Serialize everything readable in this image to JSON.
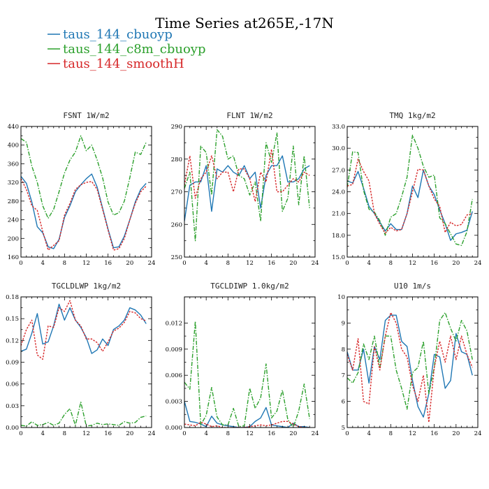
{
  "figure": {
    "title": "Time Series at265E,-17N",
    "legend": [
      {
        "label": "taus_144_cbuoyp",
        "color": "#1f77b4",
        "dash": "solid"
      },
      {
        "label": "taus_144_c8m_cbuoyp",
        "color": "#2ca02c",
        "dash": "dashdot"
      },
      {
        "label": "taus_144_smoothH",
        "color": "#d62728",
        "dash": "dotted"
      }
    ]
  },
  "chart_data": [
    {
      "type": "line",
      "title": "FSNT   1W/m2",
      "xlim": [
        0,
        24
      ],
      "ylim": [
        160,
        440
      ],
      "xticks": [
        0,
        4,
        8,
        12,
        16,
        20,
        24
      ],
      "yticks": [
        160,
        200,
        240,
        280,
        320,
        360,
        400,
        440
      ],
      "ytick_labels": [
        "160",
        "200",
        "240",
        "280",
        "320",
        "360",
        "400",
        "440"
      ],
      "x": [
        0,
        1,
        2,
        3,
        4,
        5,
        6,
        7,
        8,
        9,
        10,
        11,
        12,
        13,
        14,
        15,
        16,
        17,
        18,
        19,
        20,
        21,
        22,
        23
      ],
      "series": [
        {
          "name": "taus_144_cbuoyp",
          "values": [
            333,
            318,
            278,
            225,
            212,
            182,
            178,
            198,
            245,
            270,
            300,
            315,
            328,
            338,
            310,
            265,
            220,
            180,
            182,
            205,
            240,
            278,
            305,
            318
          ]
        },
        {
          "name": "taus_144_c8m_cbuoyp",
          "values": [
            414,
            406,
            355,
            320,
            270,
            243,
            262,
            300,
            340,
            368,
            385,
            420,
            388,
            400,
            368,
            330,
            278,
            250,
            255,
            280,
            330,
            385,
            380,
            406
          ]
        },
        {
          "name": "taus_144_smoothH",
          "values": [
            328,
            305,
            270,
            260,
            215,
            175,
            185,
            195,
            250,
            275,
            305,
            315,
            320,
            322,
            305,
            262,
            218,
            175,
            178,
            200,
            240,
            275,
            300,
            312
          ]
        }
      ]
    },
    {
      "type": "line",
      "title": "FLNT   1W/m2",
      "xlim": [
        0,
        24
      ],
      "ylim": [
        250,
        290
      ],
      "xticks": [
        0,
        4,
        8,
        12,
        16,
        20,
        24
      ],
      "yticks": [
        250,
        260,
        270,
        280,
        290
      ],
      "ytick_labels": [
        "250",
        "260",
        "270",
        "280",
        "290"
      ],
      "x": [
        0,
        1,
        2,
        3,
        4,
        5,
        6,
        7,
        8,
        9,
        10,
        11,
        12,
        13,
        14,
        15,
        16,
        17,
        18,
        19,
        20,
        21,
        22,
        23
      ],
      "series": [
        {
          "name": "taus_144_cbuoyp",
          "values": [
            261,
            272,
            273,
            273,
            278,
            264,
            277,
            276,
            278,
            276,
            275,
            278,
            274,
            276,
            265,
            275,
            278,
            278,
            281,
            273,
            273,
            274,
            277,
            278
          ]
        },
        {
          "name": "taus_144_c8m_cbuoyp",
          "values": [
            271,
            276,
            255,
            284,
            282,
            269,
            289,
            287,
            280,
            281,
            275,
            274,
            269,
            273,
            261,
            285,
            279,
            288,
            264,
            268,
            284,
            266,
            281,
            265
          ]
        },
        {
          "name": "taus_144_smoothH",
          "values": [
            272,
            281,
            268,
            274,
            276,
            281,
            274,
            276,
            276,
            270,
            277,
            277,
            274,
            267,
            276,
            273,
            283,
            270,
            270,
            272,
            274,
            273,
            276,
            275
          ]
        }
      ]
    },
    {
      "type": "line",
      "title": "TMQ   1kg/m2",
      "xlim": [
        0,
        24
      ],
      "ylim": [
        15,
        33
      ],
      "xticks": [
        0,
        4,
        8,
        12,
        16,
        20,
        24
      ],
      "yticks": [
        15,
        18,
        21,
        24,
        27,
        30,
        33
      ],
      "ytick_labels": [
        "15.0",
        "18.0",
        "21.0",
        "24.0",
        "27.0",
        "30.0",
        "33.0"
      ],
      "x": [
        0,
        1,
        2,
        3,
        4,
        5,
        6,
        7,
        8,
        9,
        10,
        11,
        12,
        13,
        14,
        15,
        16,
        17,
        18,
        19,
        20,
        21,
        22,
        23
      ],
      "series": [
        {
          "name": "taus_144_cbuoyp",
          "values": [
            25.5,
            25.2,
            26.8,
            24.5,
            22.0,
            21.0,
            19.8,
            18.6,
            19.6,
            18.8,
            18.8,
            21.0,
            24.8,
            23.2,
            27.0,
            24.8,
            23.6,
            21.5,
            19.6,
            17.3,
            18.2,
            18.4,
            18.7,
            21.3
          ]
        },
        {
          "name": "taus_144_c8m_cbuoyp",
          "values": [
            24.6,
            29.5,
            29.4,
            24.2,
            21.6,
            21.2,
            20.0,
            18.0,
            20.5,
            21.0,
            23.3,
            26.0,
            31.8,
            30.0,
            27.5,
            26.0,
            26.3,
            20.4,
            19.6,
            18.2,
            16.8,
            16.6,
            18.5,
            23.0
          ]
        },
        {
          "name": "taus_144_smoothH",
          "values": [
            24.8,
            25.0,
            28.5,
            26.8,
            25.5,
            21.0,
            19.5,
            18.3,
            19.1,
            18.6,
            18.8,
            21.0,
            24.0,
            27.1,
            27.0,
            24.8,
            23.0,
            22.0,
            18.4,
            19.8,
            19.3,
            19.5,
            20.8,
            21.0
          ]
        }
      ]
    },
    {
      "type": "line",
      "title": "TGCLDLWP   1kg/m2",
      "xlim": [
        0,
        24
      ],
      "ylim": [
        0,
        0.18
      ],
      "xticks": [
        0,
        4,
        8,
        12,
        16,
        20,
        24
      ],
      "yticks": [
        0,
        0.03,
        0.06,
        0.09,
        0.12,
        0.15,
        0.18
      ],
      "ytick_labels": [
        "0.00",
        "0.03",
        "0.06",
        "0.09",
        "0.12",
        "0.15",
        "0.18"
      ],
      "x": [
        0,
        1,
        2,
        3,
        4,
        5,
        6,
        7,
        8,
        9,
        10,
        11,
        12,
        13,
        14,
        15,
        16,
        17,
        18,
        19,
        20,
        21,
        22,
        23
      ],
      "series": [
        {
          "name": "taus_144_cbuoyp",
          "values": [
            0.105,
            0.108,
            0.13,
            0.157,
            0.115,
            0.118,
            0.14,
            0.17,
            0.148,
            0.165,
            0.148,
            0.138,
            0.124,
            0.102,
            0.107,
            0.122,
            0.113,
            0.135,
            0.14,
            0.148,
            0.165,
            0.162,
            0.155,
            0.143
          ]
        },
        {
          "name": "taus_144_c8m_cbuoyp",
          "values": [
            0.003,
            0.002,
            0.008,
            0.003,
            0.004,
            0.007,
            0.003,
            0.006,
            0.018,
            0.026,
            0.003,
            0.035,
            0.002,
            0.003,
            0.006,
            0.004,
            0.005,
            0.004,
            0.003,
            0.008,
            0.006,
            0.007,
            0.014,
            0.016
          ]
        },
        {
          "name": "taus_144_smoothH",
          "values": [
            0.113,
            0.135,
            0.148,
            0.1,
            0.094,
            0.14,
            0.138,
            0.165,
            0.16,
            0.175,
            0.148,
            0.14,
            0.122,
            0.122,
            0.117,
            0.105,
            0.118,
            0.133,
            0.137,
            0.145,
            0.16,
            0.158,
            0.15,
            0.147
          ]
        }
      ]
    },
    {
      "type": "line",
      "title": "TGCLDIWP   1.0kg/m2",
      "xlim": [
        0,
        24
      ],
      "ylim": [
        0,
        0.015
      ],
      "xticks": [
        0,
        4,
        8,
        12,
        16,
        20,
        24
      ],
      "yticks": [
        0,
        0.003,
        0.006,
        0.009,
        0.012
      ],
      "ytick_labels": [
        "0.000",
        "0.003",
        "0.006",
        "0.009",
        "0.012"
      ],
      "x": [
        0,
        1,
        2,
        3,
        4,
        5,
        6,
        7,
        8,
        9,
        10,
        11,
        12,
        13,
        14,
        15,
        16,
        17,
        18,
        19,
        20,
        21,
        22,
        23
      ],
      "series": [
        {
          "name": "taus_144_cbuoyp",
          "values": [
            0.003,
            0.0007,
            0.0006,
            0.0004,
            0.0001,
            0.0013,
            0.0005,
            0.0003,
            0.0002,
            0.0001,
            0.0,
            0.0,
            0.0001,
            0.0007,
            0.0011,
            0.0023,
            0.0003,
            0.0002,
            0.0001,
            0.0,
            0.0005,
            0.0001,
            0.0001,
            0.0
          ]
        },
        {
          "name": "taus_144_c8m_cbuoyp",
          "values": [
            0.0052,
            0.0044,
            0.0122,
            0.0003,
            0.0014,
            0.0046,
            0.0012,
            0.0003,
            0.0003,
            0.0022,
            0.0001,
            0.0002,
            0.0045,
            0.0022,
            0.0034,
            0.0073,
            0.0011,
            0.0019,
            0.0043,
            0.0009,
            0.0,
            0.0019,
            0.005,
            0.001
          ]
        },
        {
          "name": "taus_144_smoothH",
          "values": [
            0.0004,
            0.0003,
            0.0002,
            0.0006,
            0.0004,
            0.0001,
            0.0002,
            0.0,
            0.0,
            0.0,
            0.0,
            0.0,
            0.0001,
            0.0002,
            0.0003,
            0.0002,
            0.0003,
            0.0005,
            0.0007,
            0.0007,
            0.0004,
            0.0001,
            0.0,
            0.0
          ]
        }
      ]
    },
    {
      "type": "line",
      "title": "U10   1m/s",
      "xlim": [
        0,
        24
      ],
      "ylim": [
        5,
        10
      ],
      "xticks": [
        0,
        4,
        8,
        12,
        16,
        20,
        24
      ],
      "yticks": [
        5,
        6,
        7,
        8,
        9,
        10
      ],
      "ytick_labels": [
        "5",
        "6",
        "7",
        "8",
        "9",
        "10"
      ],
      "x": [
        0,
        1,
        2,
        3,
        4,
        5,
        6,
        7,
        8,
        9,
        10,
        11,
        12,
        13,
        14,
        15,
        16,
        17,
        18,
        19,
        20,
        21,
        22,
        23
      ],
      "series": [
        {
          "name": "taus_144_cbuoyp",
          "values": [
            7.9,
            7.2,
            7.2,
            8.0,
            6.7,
            8.1,
            7.6,
            9.1,
            9.3,
            9.3,
            8.3,
            8.1,
            6.8,
            5.8,
            5.4,
            6.3,
            7.8,
            7.7,
            6.5,
            6.8,
            8.6,
            7.9,
            7.8,
            7.0
          ]
        },
        {
          "name": "taus_144_c8m_cbuoyp",
          "values": [
            6.9,
            6.7,
            7.1,
            8.2,
            7.6,
            8.5,
            7.3,
            8.5,
            8.5,
            7.2,
            6.5,
            5.7,
            7.1,
            7.3,
            8.3,
            6.3,
            7.3,
            9.1,
            9.4,
            8.8,
            8.3,
            9.1,
            8.7,
            7.6
          ]
        },
        {
          "name": "taus_144_smoothH",
          "values": [
            7.8,
            7.2,
            8.4,
            6.0,
            5.9,
            8.1,
            7.2,
            8.5,
            9.4,
            9.0,
            8.0,
            7.7,
            6.6,
            6.0,
            7.0,
            5.2,
            7.3,
            8.3,
            7.5,
            8.5,
            7.6,
            8.5,
            7.8,
            7.3
          ]
        }
      ]
    }
  ]
}
